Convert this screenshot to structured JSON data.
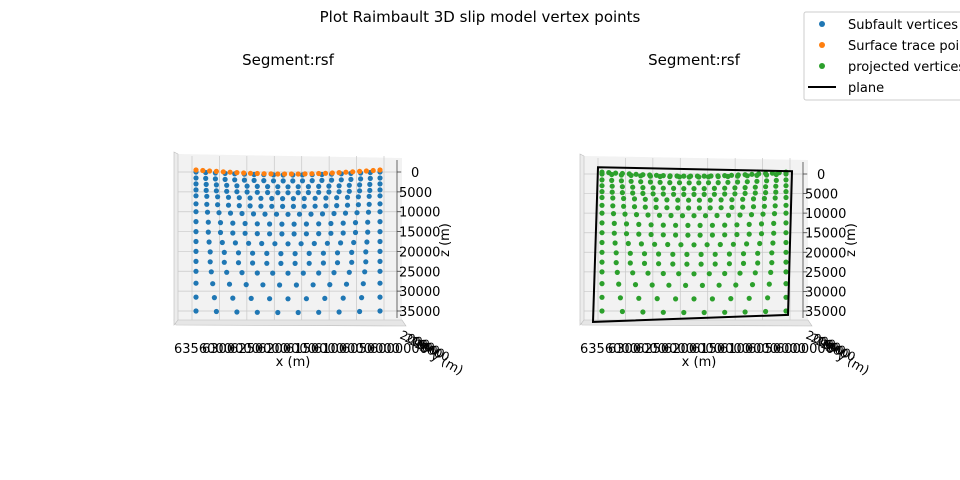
{
  "figure": {
    "title": "Plot Raimbault 3D slip model vertex points"
  },
  "legend": {
    "placement": "top-right",
    "entries": [
      {
        "label": "Subfault vertices",
        "color": "#1f77b4",
        "marker": "dot"
      },
      {
        "label": "Surface trace points",
        "color": "#ff7f0e",
        "marker": "dot"
      },
      {
        "label": "projected vertices",
        "color": "#2ca02c",
        "marker": "dot"
      },
      {
        "label": "plane",
        "color": "#000000",
        "marker": "line"
      }
    ]
  },
  "chart_data": [
    {
      "type": "scatter",
      "projection": "3d",
      "title": "Segment:rsf",
      "xlabel": "x (m)",
      "ylabel": "y (m)",
      "zlabel": "z (m)",
      "x_tick_labels": [
        "6356000",
        "6300000",
        "6250000",
        "6200000",
        "6150000",
        "6100000",
        "6050000",
        "6000000"
      ],
      "y_tick_labels": [
        "2000",
        "2000",
        "2000",
        "2000",
        "2000"
      ],
      "z_ticks": [
        0,
        5000,
        10000,
        15000,
        20000,
        25000,
        30000,
        35000
      ],
      "zlim": [
        0,
        37000
      ],
      "zaxis_inverted": true,
      "grid": true,
      "series": [
        {
          "name": "Subfault vertices",
          "color": "#1f77b4",
          "depth_rows": [
            0,
            1500,
            3000,
            4500,
            6000,
            8000,
            10000,
            12500,
            15000,
            17500,
            20000,
            22500,
            25000,
            28000,
            31500,
            35000
          ]
        },
        {
          "name": "Surface trace points",
          "color": "#ff7f0e",
          "depth_rows": [
            -1500
          ]
        }
      ]
    },
    {
      "type": "scatter",
      "projection": "3d",
      "title": "Segment:rsf",
      "xlabel": "x (m)",
      "ylabel": "y (m)",
      "zlabel": "z (m)",
      "x_tick_labels": [
        "6356000",
        "6300000",
        "6250000",
        "6200000",
        "6150000",
        "6100000",
        "6050000",
        "6000000"
      ],
      "y_tick_labels": [
        "2000",
        "2000",
        "2000",
        "2000",
        "2000"
      ],
      "z_ticks": [
        0,
        5000,
        10000,
        15000,
        20000,
        25000,
        30000,
        35000
      ],
      "zlim": [
        0,
        37000
      ],
      "zaxis_inverted": true,
      "grid": true,
      "series": [
        {
          "name": "projected vertices",
          "color": "#2ca02c",
          "depth_rows": [
            -1500,
            0,
            1500,
            3000,
            4500,
            6000,
            8000,
            10000,
            12500,
            15000,
            17500,
            20000,
            22500,
            25000,
            28000,
            31500,
            35000
          ]
        },
        {
          "name": "plane",
          "color": "#000000",
          "depth_rows": [
            -3000,
            36000
          ]
        }
      ]
    }
  ]
}
